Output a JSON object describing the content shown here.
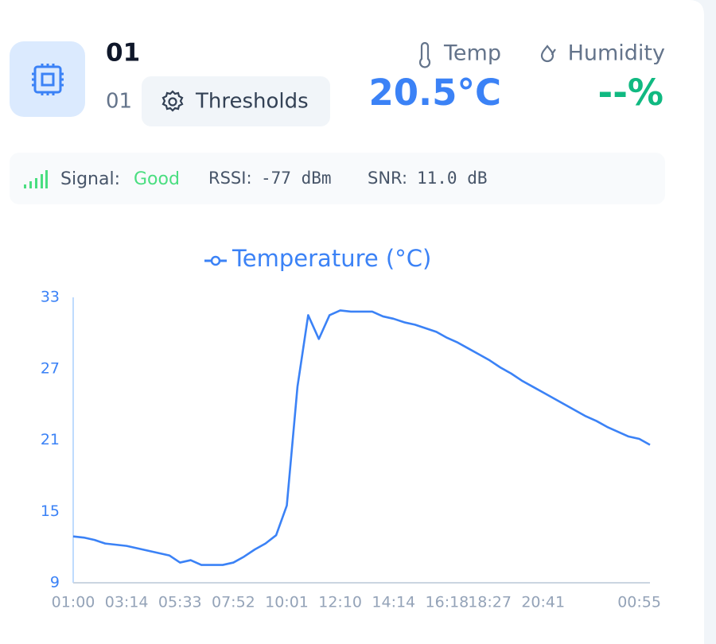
{
  "device": {
    "name": "01",
    "id": "01",
    "thresholds_button": "Thresholds"
  },
  "readings": {
    "temp_label": "Temp",
    "temp_value": "20.5°C",
    "humidity_label": "Humidity",
    "humidity_value": "--%"
  },
  "signal": {
    "label": "Signal:",
    "quality": "Good",
    "rssi_label": "RSSI:",
    "rssi_value": "-77 dBm",
    "snr_label": "SNR:",
    "snr_value": "11.0 dB"
  },
  "chart_data": {
    "type": "line",
    "categories": [
      "01:00",
      null,
      null,
      null,
      null,
      "03:14",
      null,
      null,
      null,
      null,
      "05:33",
      null,
      null,
      null,
      null,
      "07:52",
      null,
      null,
      null,
      null,
      "10:01",
      null,
      null,
      null,
      null,
      "12:10",
      null,
      null,
      null,
      null,
      "14:14",
      null,
      null,
      null,
      null,
      "16:18",
      null,
      null,
      null,
      "18:27",
      null,
      null,
      null,
      null,
      "20:41",
      null,
      null,
      null,
      null,
      null,
      null,
      null,
      null,
      "00:55",
      null
    ],
    "series": [
      {
        "name": "Temperature (°C)",
        "color": "#3b82f6",
        "values": [
          12.9,
          12.8,
          12.6,
          12.3,
          12.2,
          12.1,
          11.9,
          11.7,
          11.5,
          11.3,
          10.7,
          10.9,
          10.5,
          10.5,
          10.5,
          10.7,
          11.2,
          11.8,
          12.3,
          13.0,
          15.5,
          25.5,
          31.5,
          29.5,
          31.5,
          31.9,
          31.8,
          31.8,
          31.8,
          31.4,
          31.2,
          30.9,
          30.7,
          30.4,
          30.1,
          29.6,
          29.2,
          28.7,
          28.2,
          27.7,
          27.1,
          26.6,
          26.0,
          25.5,
          25.0,
          24.5,
          24.0,
          23.5,
          23.0,
          22.6,
          22.1,
          21.7,
          21.3,
          21.1,
          20.6
        ]
      }
    ],
    "ylim": [
      9,
      33
    ],
    "yticks": [
      9,
      15,
      21,
      27,
      33
    ],
    "grid": false
  }
}
